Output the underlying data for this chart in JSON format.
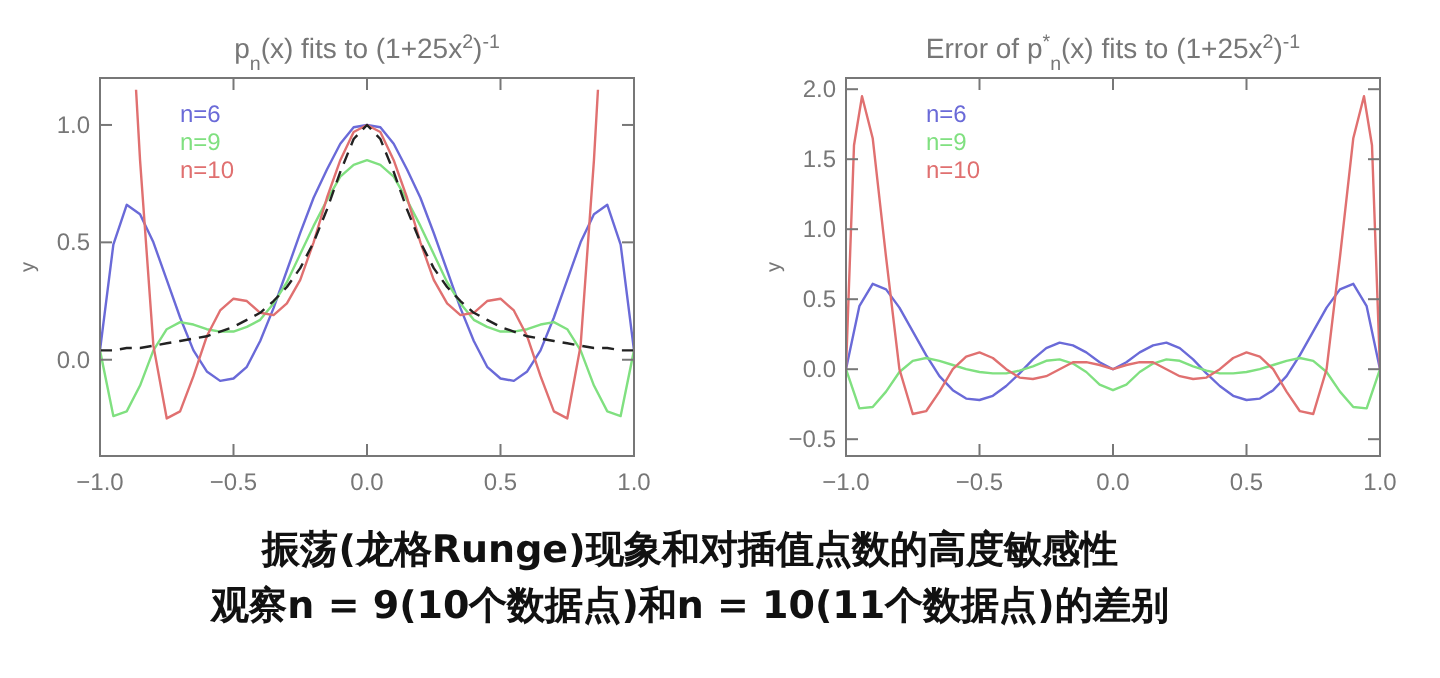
{
  "chart_data": [
    {
      "type": "line",
      "title": "p$_{n}$(x) fits to (1+25x$^{2}$)$^{-1}$",
      "ylabel": "y",
      "xlim": [
        -1,
        1
      ],
      "ylim": [
        -0.41,
        1.2
      ],
      "xticks": [
        {
          "value": -1,
          "label": "−1.0"
        },
        {
          "value": -0.5,
          "label": "−0.5"
        },
        {
          "value": 0,
          "label": "0.0"
        },
        {
          "value": 0.5,
          "label": "0.5"
        },
        {
          "value": 1,
          "label": "1.0"
        }
      ],
      "yticks": [
        {
          "value": 0,
          "label": "0.0"
        },
        {
          "value": 0.5,
          "label": "0.5"
        },
        {
          "value": 1,
          "label": "1.0"
        }
      ],
      "legend": "top left",
      "grid": false,
      "marker": "none",
      "x": [
        -1,
        -0.95,
        -0.9,
        -0.85,
        -0.8,
        -0.75,
        -0.7,
        -0.65,
        -0.6,
        -0.55,
        -0.5,
        -0.45,
        -0.4,
        -0.35,
        -0.3,
        -0.25,
        -0.2,
        -0.15,
        -0.1,
        -0.05,
        0,
        0.05,
        0.1,
        0.15,
        0.2,
        0.25,
        0.3,
        0.35,
        0.4,
        0.45,
        0.5,
        0.55,
        0.6,
        0.65,
        0.7,
        0.75,
        0.8,
        0.85,
        0.9,
        0.95,
        1
      ],
      "series": [
        {
          "name": "n=6",
          "color": "#6a6ad8",
          "values": [
            0.04,
            0.49,
            0.66,
            0.62,
            0.5,
            0.34,
            0.18,
            0.04,
            -0.05,
            -0.09,
            -0.08,
            -0.03,
            0.08,
            0.22,
            0.38,
            0.54,
            0.69,
            0.81,
            0.92,
            0.99,
            1,
            0.99,
            0.92,
            0.81,
            0.69,
            0.54,
            0.38,
            0.22,
            0.08,
            -0.03,
            -0.08,
            -0.09,
            -0.05,
            0.04,
            0.18,
            0.34,
            0.5,
            0.62,
            0.66,
            0.49,
            0.04
          ]
        },
        {
          "name": "n=9",
          "color": "#80e080",
          "values": [
            0.04,
            -0.24,
            -0.22,
            -0.11,
            0.04,
            0.13,
            0.16,
            0.15,
            0.13,
            0.12,
            0.12,
            0.14,
            0.17,
            0.24,
            0.33,
            0.45,
            0.57,
            0.68,
            0.78,
            0.83,
            0.85,
            0.83,
            0.78,
            0.68,
            0.57,
            0.45,
            0.33,
            0.24,
            0.17,
            0.14,
            0.12,
            0.12,
            0.13,
            0.15,
            0.16,
            0.13,
            0.04,
            -0.11,
            -0.22,
            -0.24,
            0.04
          ]
        },
        {
          "name": "n=10",
          "color": "#e07070",
          "x": [
            -0.865,
            -0.85,
            -0.8,
            -0.75,
            -0.7,
            -0.65,
            -0.6,
            -0.55,
            -0.5,
            -0.45,
            -0.4,
            -0.35,
            -0.3,
            -0.25,
            -0.2,
            -0.15,
            -0.1,
            -0.05,
            0,
            0.05,
            0.1,
            0.15,
            0.2,
            0.25,
            0.3,
            0.35,
            0.4,
            0.45,
            0.5,
            0.55,
            0.6,
            0.65,
            0.7,
            0.75,
            0.8,
            0.85,
            0.865
          ],
          "values": [
            1.15,
            0.85,
            0.06,
            -0.25,
            -0.22,
            -0.07,
            0.1,
            0.21,
            0.26,
            0.25,
            0.2,
            0.19,
            0.24,
            0.34,
            0.5,
            0.69,
            0.85,
            0.97,
            1,
            0.97,
            0.85,
            0.69,
            0.5,
            0.34,
            0.24,
            0.19,
            0.2,
            0.25,
            0.26,
            0.21,
            0.1,
            -0.07,
            -0.22,
            -0.25,
            0.06,
            0.85,
            1.15
          ]
        },
        {
          "color": "#222222",
          "line_style": "dashed",
          "values": [
            0.04,
            0.04,
            0.05,
            0.05,
            0.06,
            0.07,
            0.08,
            0.09,
            0.1,
            0.12,
            0.14,
            0.17,
            0.2,
            0.25,
            0.31,
            0.39,
            0.5,
            0.64,
            0.8,
            0.94,
            1,
            0.94,
            0.8,
            0.64,
            0.5,
            0.39,
            0.31,
            0.25,
            0.2,
            0.17,
            0.14,
            0.12,
            0.1,
            0.09,
            0.08,
            0.07,
            0.06,
            0.05,
            0.05,
            0.04,
            0.04
          ]
        }
      ]
    },
    {
      "type": "line",
      "title": "Error of p$^{*}$$_{n}$(x) fits to (1+25x$^{2}$)$^{-1}$",
      "ylabel": "y",
      "xlim": [
        -1,
        1
      ],
      "ylim": [
        -0.62,
        2.08
      ],
      "xticks": [
        {
          "value": -1,
          "label": "−1.0"
        },
        {
          "value": -0.5,
          "label": "−0.5"
        },
        {
          "value": 0,
          "label": "0.0"
        },
        {
          "value": 0.5,
          "label": "0.5"
        },
        {
          "value": 1,
          "label": "1.0"
        }
      ],
      "yticks": [
        {
          "value": -0.5,
          "label": "−0.5"
        },
        {
          "value": 0,
          "label": "0.0"
        },
        {
          "value": 0.5,
          "label": "0.5"
        },
        {
          "value": 1,
          "label": "1.0"
        },
        {
          "value": 1.5,
          "label": "1.5"
        },
        {
          "value": 2,
          "label": "2.0"
        }
      ],
      "legend": "top left",
      "grid": false,
      "marker": "none",
      "x": [
        -1,
        -0.95,
        -0.9,
        -0.85,
        -0.8,
        -0.75,
        -0.7,
        -0.65,
        -0.6,
        -0.55,
        -0.5,
        -0.45,
        -0.4,
        -0.35,
        -0.3,
        -0.25,
        -0.2,
        -0.15,
        -0.1,
        -0.05,
        0,
        0.05,
        0.1,
        0.15,
        0.2,
        0.25,
        0.3,
        0.35,
        0.4,
        0.45,
        0.5,
        0.55,
        0.6,
        0.65,
        0.7,
        0.75,
        0.8,
        0.85,
        0.9,
        0.95,
        1
      ],
      "series": [
        {
          "name": "n=6",
          "color": "#6a6ad8",
          "values": [
            0,
            0.45,
            0.61,
            0.57,
            0.44,
            0.27,
            0.1,
            -0.05,
            -0.15,
            -0.21,
            -0.22,
            -0.19,
            -0.12,
            -0.03,
            0.07,
            0.15,
            0.19,
            0.17,
            0.12,
            0.05,
            0,
            0.05,
            0.12,
            0.17,
            0.19,
            0.15,
            0.07,
            -0.03,
            -0.12,
            -0.19,
            -0.22,
            -0.21,
            -0.15,
            -0.05,
            0.1,
            0.27,
            0.44,
            0.57,
            0.61,
            0.45,
            0
          ]
        },
        {
          "name": "n=9",
          "color": "#80e080",
          "values": [
            0,
            -0.28,
            -0.27,
            -0.16,
            -0.02,
            0.06,
            0.08,
            0.06,
            0.03,
            0,
            -0.02,
            -0.03,
            -0.03,
            -0.01,
            0.02,
            0.06,
            0.07,
            0.04,
            -0.02,
            -0.11,
            -0.15,
            -0.11,
            -0.02,
            0.04,
            0.07,
            0.06,
            0.02,
            -0.01,
            -0.03,
            -0.03,
            -0.02,
            0,
            0.03,
            0.06,
            0.08,
            0.06,
            -0.02,
            -0.16,
            -0.27,
            -0.28,
            0
          ]
        },
        {
          "name": "n=10",
          "color": "#e07070",
          "x": [
            -1,
            -0.97,
            -0.94,
            -0.9,
            -0.85,
            -0.8,
            -0.75,
            -0.7,
            -0.65,
            -0.6,
            -0.55,
            -0.5,
            -0.45,
            -0.4,
            -0.35,
            -0.3,
            -0.25,
            -0.2,
            -0.15,
            -0.1,
            -0.05,
            0,
            0.05,
            0.1,
            0.15,
            0.2,
            0.25,
            0.3,
            0.35,
            0.4,
            0.45,
            0.5,
            0.55,
            0.6,
            0.65,
            0.7,
            0.75,
            0.8,
            0.85,
            0.9,
            0.94,
            0.97,
            1
          ],
          "values": [
            0,
            1.6,
            1.95,
            1.65,
            0.8,
            0,
            -0.32,
            -0.3,
            -0.16,
            0,
            0.09,
            0.12,
            0.08,
            0,
            -0.06,
            -0.07,
            -0.05,
            0,
            0.05,
            0.05,
            0.03,
            0,
            0.03,
            0.05,
            0.05,
            0,
            -0.05,
            -0.07,
            -0.06,
            0,
            0.08,
            0.12,
            0.09,
            0,
            -0.16,
            -0.3,
            -0.32,
            0,
            0.8,
            1.65,
            1.95,
            1.6,
            0
          ]
        }
      ]
    },
    {
      "type": "other",
      "annotations": [
        "振荡(龙格Runge)现象和对插值点数的高度敏感性",
        "观察n = 9(10个数据点)和n = 10(11个数据点)的差别"
      ]
    }
  ]
}
